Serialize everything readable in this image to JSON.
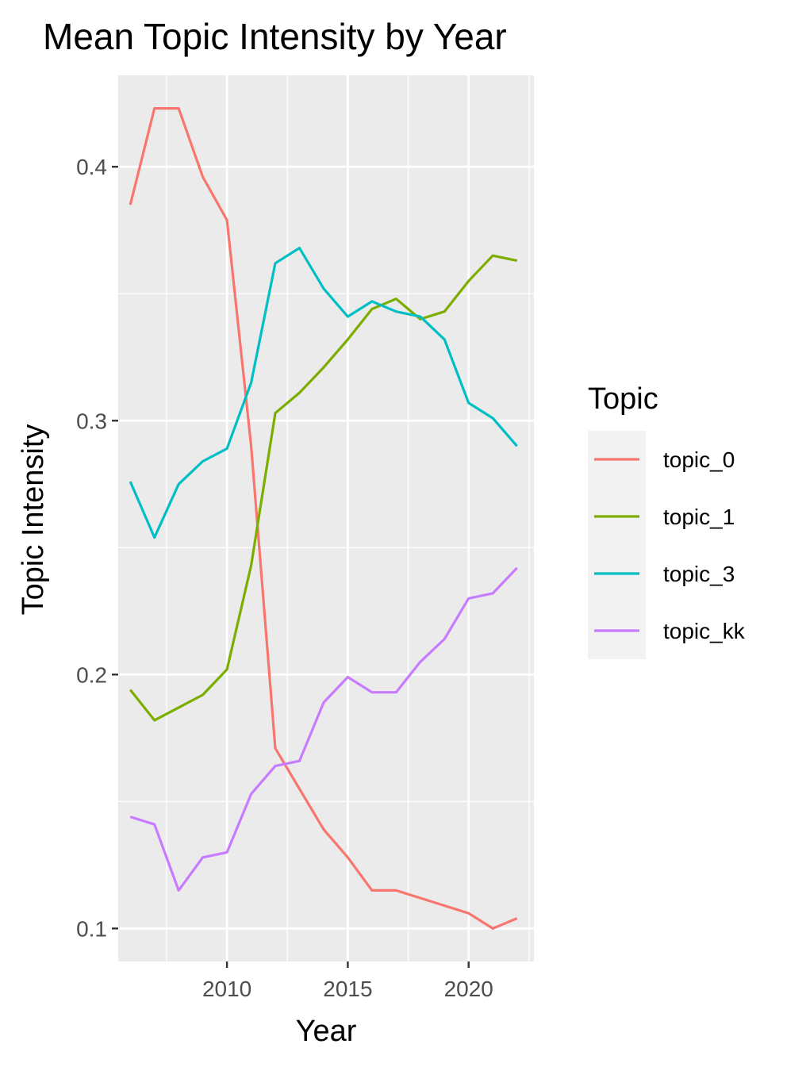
{
  "chart_data": {
    "type": "line",
    "title": "Mean Topic Intensity by Year",
    "xlabel": "Year",
    "ylabel": "Topic Intensity",
    "xlim": [
      2005.5,
      2022.7
    ],
    "ylim": [
      0.087,
      0.436
    ],
    "x_ticks": [
      2010,
      2015,
      2020
    ],
    "y_ticks": [
      0.1,
      0.2,
      0.3,
      0.4
    ],
    "x_tick_labels": [
      "2010",
      "2015",
      "2020"
    ],
    "y_tick_labels": [
      "0.1",
      "0.2",
      "0.3",
      "0.4"
    ],
    "grid": true,
    "legend_title": "Topic",
    "legend_position": "right",
    "x": [
      2006,
      2007,
      2008,
      2009,
      2010,
      2011,
      2012,
      2013,
      2014,
      2015,
      2016,
      2017,
      2018,
      2019,
      2020,
      2021,
      2022
    ],
    "series": [
      {
        "name": "topic_0",
        "color": "#F8766D",
        "values": [
          0.385,
          0.423,
          0.423,
          0.396,
          0.379,
          0.29,
          0.171,
          0.155,
          0.139,
          0.128,
          0.115,
          0.115,
          0.112,
          0.109,
          0.106,
          0.1,
          0.104
        ]
      },
      {
        "name": "topic_1",
        "color": "#7CAE00",
        "values": [
          0.194,
          0.182,
          0.187,
          0.192,
          0.202,
          0.243,
          0.303,
          0.311,
          0.321,
          0.332,
          0.344,
          0.348,
          0.34,
          0.343,
          0.355,
          0.365,
          0.363
        ]
      },
      {
        "name": "topic_3",
        "color": "#00BFC4",
        "values": [
          0.276,
          0.254,
          0.275,
          0.284,
          0.289,
          0.315,
          0.362,
          0.368,
          0.352,
          0.341,
          0.347,
          0.343,
          0.341,
          0.332,
          0.307,
          0.301,
          0.29
        ]
      },
      {
        "name": "topic_kk",
        "color": "#C77CFF",
        "values": [
          0.144,
          0.141,
          0.115,
          0.128,
          0.13,
          0.153,
          0.164,
          0.166,
          0.189,
          0.199,
          0.193,
          0.193,
          0.205,
          0.214,
          0.23,
          0.232,
          0.242
        ]
      }
    ]
  }
}
